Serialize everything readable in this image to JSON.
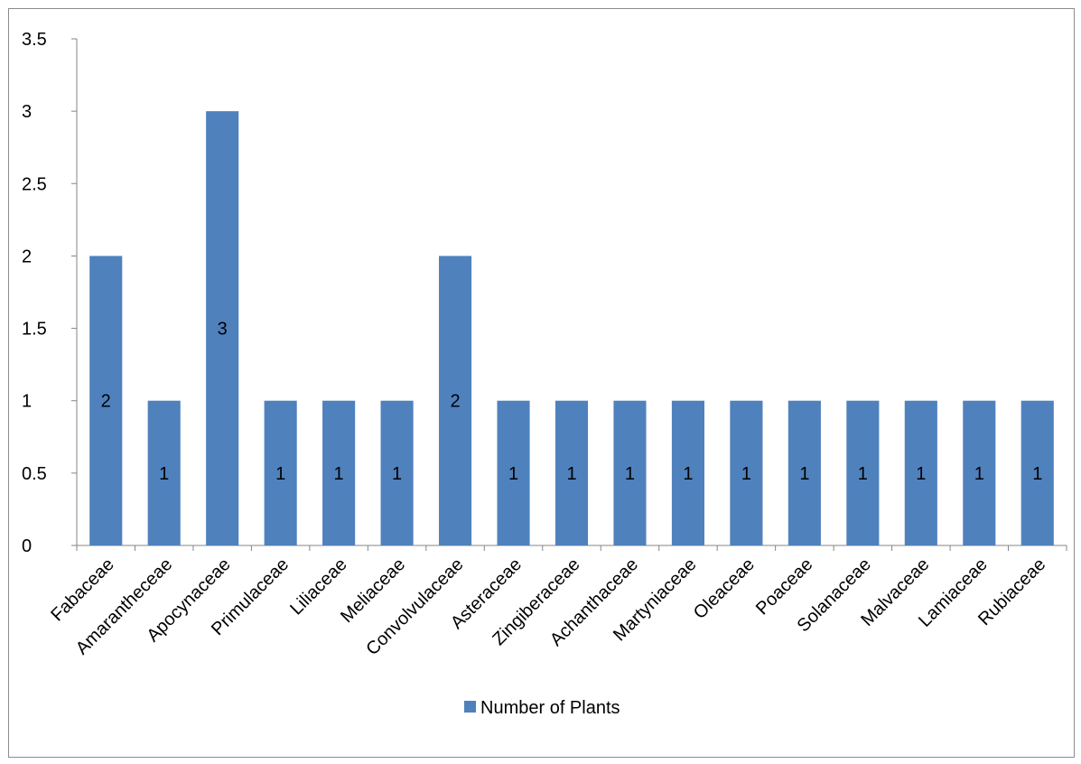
{
  "chart_data": {
    "type": "bar",
    "categories": [
      "Fabaceae",
      "Amarantheceae",
      "Apocynaceae",
      "Primulaceae",
      "Liliaceae",
      "Meliaceae",
      "Convolvulaceae",
      "Asteraceae",
      "Zingiberaceae",
      "Achanthaceae",
      "Martyniaceae",
      "Oleaceae",
      "Poaceae",
      "Solanaceae",
      "Malvaceae",
      "Lamiaceae",
      "Rubiaceae"
    ],
    "series": [
      {
        "name": "Number of Plants",
        "values": [
          2,
          1,
          3,
          1,
          1,
          1,
          2,
          1,
          1,
          1,
          1,
          1,
          1,
          1,
          1,
          1,
          1
        ],
        "color": "#4f81bd"
      }
    ],
    "data_labels": [
      "2",
      "1",
      "3",
      "1",
      "1",
      "1",
      "2",
      "1",
      "1",
      "1",
      "1",
      "1",
      "1",
      "1",
      "1",
      "1",
      "1"
    ],
    "yticks": [
      "0",
      "0.5",
      "1",
      "1.5",
      "2",
      "2.5",
      "3",
      "3.5"
    ],
    "ylim": [
      0,
      3.5
    ],
    "title": "",
    "xlabel": "",
    "ylabel": "",
    "grid": false,
    "legend": "bottom"
  }
}
